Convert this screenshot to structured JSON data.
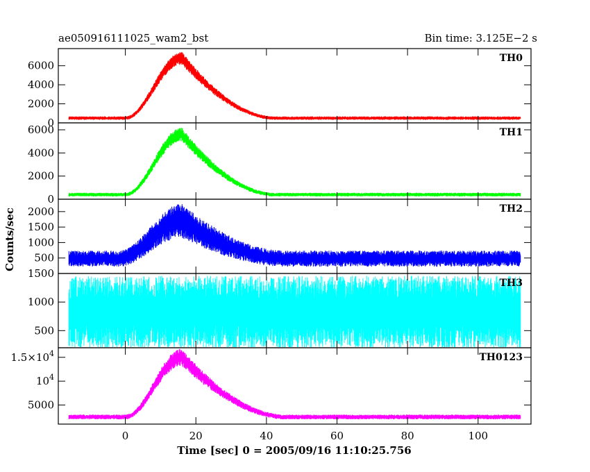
{
  "chart_data": {
    "type": "line",
    "title": "ae050916111025_wam2_bst",
    "subtitle": "Bin time: 3.125E−2 s",
    "xlabel": "Time [sec] 0 = 2005/09/16 11:10:25.756",
    "ylabel": "Counts/sec",
    "xlim": [
      -19,
      115
    ],
    "xticks": [
      0,
      20,
      40,
      60,
      80,
      100
    ],
    "xtick_labels": [
      "0",
      "20",
      "40",
      "60",
      "80",
      "100"
    ],
    "data_range": [
      -16,
      112
    ],
    "grid": false,
    "panels": [
      {
        "name": "TH0",
        "color": "#ff0000",
        "ylim": [
          0,
          7800
        ],
        "yticks": [
          0,
          2000,
          4000,
          6000
        ],
        "ytick_labels": [
          "0",
          "2000",
          "4000",
          "6000"
        ],
        "background": 500,
        "peak_value": 6800,
        "peak_time": 16,
        "rise_start": 0,
        "decay_end": 42,
        "noise_amplitude": 180,
        "noise_at_peak": 700
      },
      {
        "name": "TH1",
        "color": "#00ff00",
        "ylim": [
          0,
          6600
        ],
        "yticks": [
          0,
          2000,
          4000,
          6000
        ],
        "ytick_labels": [
          "0",
          "2000",
          "4000",
          "6000"
        ],
        "background": 400,
        "peak_value": 5600,
        "peak_time": 16,
        "rise_start": 0,
        "decay_end": 42,
        "noise_amplitude": 160,
        "noise_at_peak": 600
      },
      {
        "name": "TH2",
        "color": "#0000ff",
        "ylim": [
          0,
          2400
        ],
        "yticks": [
          500,
          1000,
          1500,
          2000
        ],
        "ytick_labels": [
          "500",
          "1000",
          "1500",
          "2000"
        ],
        "background": 480,
        "peak_value": 1700,
        "peak_time": 16,
        "rise_start": -2,
        "decay_end": 45,
        "noise_amplitude": 260,
        "noise_at_peak": 550
      },
      {
        "name": "TH3",
        "color": "#00ffff",
        "ylim": [
          200,
          1500
        ],
        "yticks": [
          500,
          1000,
          1500
        ],
        "ytick_labels": [
          "500",
          "1000",
          "1500"
        ],
        "background": 820,
        "peak_value": 820,
        "peak_time": 16,
        "rise_start": 0,
        "decay_end": 40,
        "noise_amplitude": 640,
        "noise_at_peak": 640
      },
      {
        "name": "TH0123",
        "color": "#ff00ff",
        "ylim": [
          1000,
          17000
        ],
        "yticks": [
          5000,
          10000,
          15000
        ],
        "ytick_labels": [
          "5000",
          "10^4",
          "1.5×10^4"
        ],
        "background": 2500,
        "peak_value": 15000,
        "peak_time": 16,
        "rise_start": 0,
        "decay_end": 45,
        "noise_amplitude": 500,
        "noise_at_peak": 1800
      }
    ]
  }
}
